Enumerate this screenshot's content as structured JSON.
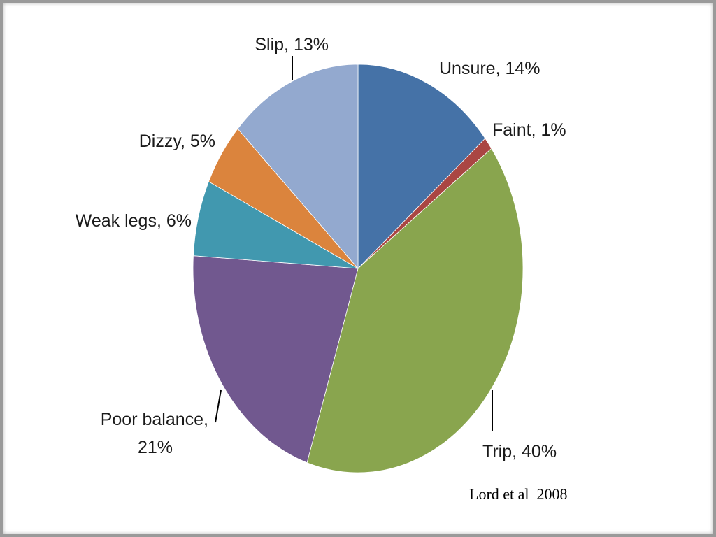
{
  "chart_data": {
    "type": "pie",
    "categories": [
      "Unsure",
      "Faint",
      "Trip",
      "Poor balance",
      "Weak legs",
      "Dizzy",
      "Slip"
    ],
    "values": [
      14,
      1,
      40,
      21,
      6,
      5,
      13
    ],
    "unit": "%",
    "colors": [
      "#4572a7",
      "#aa4643",
      "#89a54e",
      "#71588f",
      "#4198af",
      "#db843d",
      "#93a9cf"
    ],
    "labels": [
      [
        "Unsure, 14%"
      ],
      [
        "Faint, 1%"
      ],
      [
        "Trip, 40%"
      ],
      [
        "Poor balance,",
        "21%"
      ],
      [
        "Weak legs, 6%"
      ],
      [
        "Dizzy, 5%"
      ],
      [
        "Slip, 13%"
      ]
    ],
    "legend": "none"
  },
  "citation": "Lord et al  2008"
}
